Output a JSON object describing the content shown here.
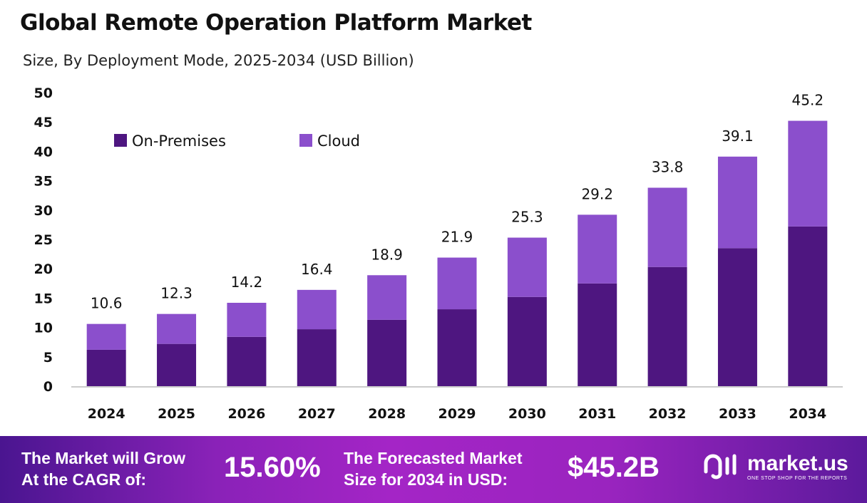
{
  "title": "Global Remote Operation Platform Market",
  "subtitle": "Size, By Deployment Mode, 2025-2034 (USD Billion)",
  "chart_data": {
    "type": "bar",
    "stacked": true,
    "categories": [
      "2024",
      "2025",
      "2026",
      "2027",
      "2028",
      "2029",
      "2030",
      "2031",
      "2032",
      "2033",
      "2034"
    ],
    "series": [
      {
        "name": "On-Premises",
        "color": "#4E1680",
        "values": [
          6.2,
          7.2,
          8.4,
          9.7,
          11.3,
          13.1,
          15.2,
          17.5,
          20.3,
          23.5,
          27.2
        ]
      },
      {
        "name": "Cloud",
        "color": "#8B4FCC",
        "values": [
          4.4,
          5.1,
          5.8,
          6.7,
          7.6,
          8.8,
          10.1,
          11.7,
          13.5,
          15.6,
          18.0
        ]
      }
    ],
    "totals": [
      "10.6",
      "12.3",
      "14.2",
      "16.4",
      "18.9",
      "21.9",
      "25.3",
      "29.2",
      "33.8",
      "39.1",
      "45.2"
    ],
    "ylim": [
      0,
      50
    ],
    "yticks": [
      "0",
      "5",
      "10",
      "15",
      "20",
      "25",
      "30",
      "35",
      "40",
      "45",
      "50"
    ],
    "grid": false,
    "legend": "top-left",
    "xlabel": "",
    "ylabel": ""
  },
  "footer": {
    "cagr_label_1": "The Market will Grow",
    "cagr_label_2": "At the CAGR of:",
    "cagr_value": "15.60%",
    "forecast_label_1": "The Forecasted Market",
    "forecast_label_2": "Size for 2034 in USD:",
    "forecast_value": "$45.2B",
    "logo_name": "market.us",
    "logo_tagline": "ONE STOP SHOP FOR THE REPORTS"
  }
}
